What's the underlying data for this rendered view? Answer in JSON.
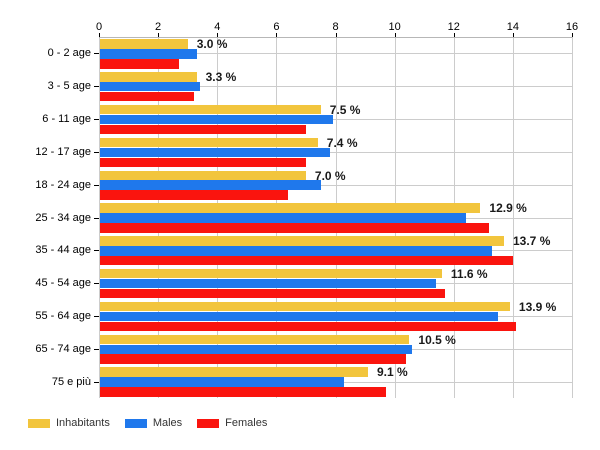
{
  "chart_data": {
    "type": "bar",
    "orientation": "horizontal",
    "title": "",
    "xlabel": "",
    "ylabel": "",
    "axis_position": "top",
    "xlim": [
      0,
      16
    ],
    "x_ticks": [
      0,
      2,
      4,
      6,
      8,
      10,
      12,
      14,
      16
    ],
    "grid": true,
    "legend_position": "bottom-left",
    "categories": [
      "0 - 2 age",
      "3 - 5 age",
      "6 - 11 age",
      "12 - 17 age",
      "18 - 24 age",
      "25 - 34 age",
      "35 - 44 age",
      "45 - 54 age",
      "55 - 64 age",
      "65 - 74 age",
      "75 e più"
    ],
    "series": [
      {
        "name": "Inhabitants",
        "color": "#F2C53D",
        "values": [
          3.0,
          3.3,
          7.5,
          7.4,
          7.0,
          12.9,
          13.7,
          11.6,
          13.9,
          10.5,
          9.1
        ]
      },
      {
        "name": "Males",
        "color": "#1F78EC",
        "values": [
          3.3,
          3.4,
          7.9,
          7.8,
          7.5,
          12.4,
          13.3,
          11.4,
          13.5,
          10.6,
          8.3
        ]
      },
      {
        "name": "Females",
        "color": "#FA140E",
        "values": [
          2.7,
          3.2,
          7.0,
          7.0,
          6.4,
          13.2,
          14.0,
          11.7,
          14.1,
          10.4,
          9.7
        ]
      }
    ],
    "value_labels": [
      "3.0 %",
      "3.3 %",
      "7.5 %",
      "7.4 %",
      "7.0 %",
      "12.9 %",
      "13.7 %",
      "11.6 %",
      "13.9 %",
      "10.5 %",
      "9.1 %"
    ],
    "value_label_series": "Inhabitants"
  },
  "colors": {
    "grid": "#cccccc",
    "axis_text": "#000000",
    "value_label_text": "#1a1a1a",
    "legend_text": "#333333",
    "background": "#ffffff"
  }
}
